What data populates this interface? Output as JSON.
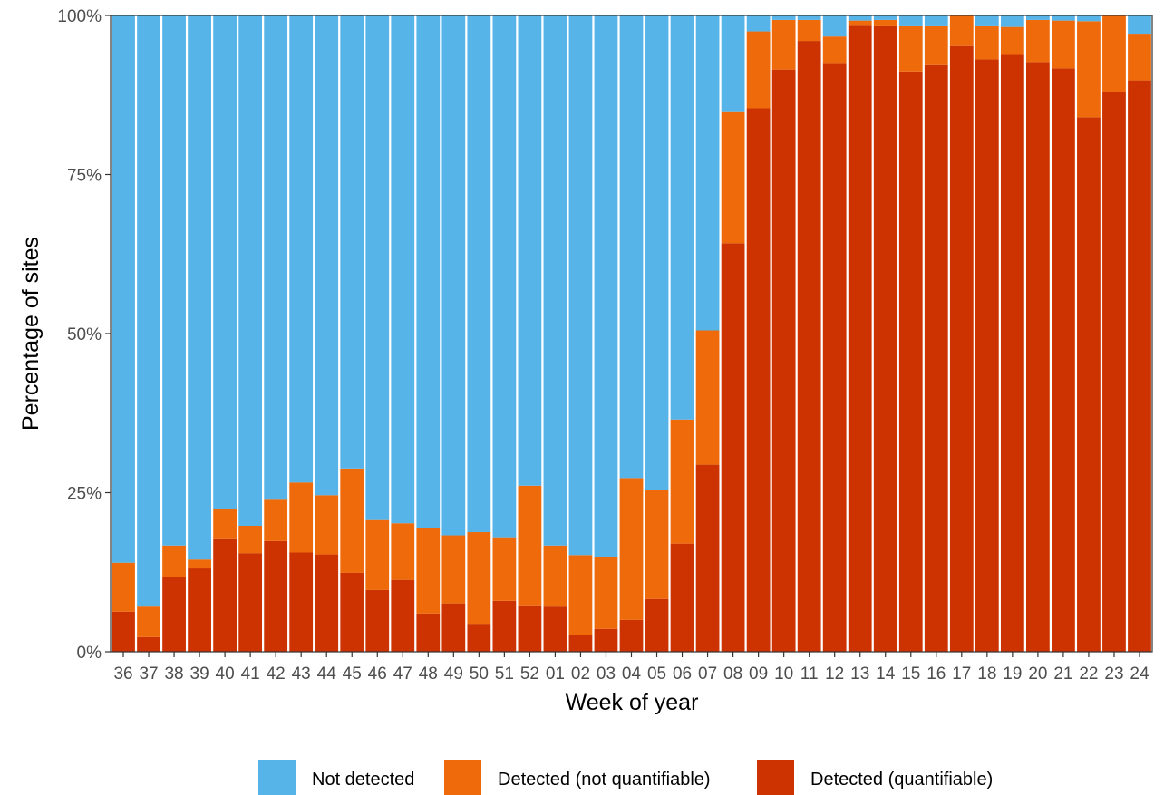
{
  "chart_data": {
    "type": "bar",
    "stacked": true,
    "percent": true,
    "xlabel": "Week of year",
    "ylabel": "Percentage of sites",
    "ylim": [
      0,
      100
    ],
    "yticks": [
      "0%",
      "25%",
      "50%",
      "75%",
      "100%"
    ],
    "grid": false,
    "legend_position": "bottom",
    "categories": [
      "36",
      "37",
      "38",
      "39",
      "40",
      "41",
      "42",
      "43",
      "44",
      "45",
      "46",
      "47",
      "48",
      "49",
      "50",
      "51",
      "52",
      "01",
      "02",
      "03",
      "04",
      "05",
      "06",
      "07",
      "08",
      "09",
      "10",
      "11",
      "12",
      "13",
      "14",
      "15",
      "16",
      "17",
      "18",
      "19",
      "20",
      "21",
      "22",
      "23",
      "24"
    ],
    "series": [
      {
        "name": "Detected (quantifiable)",
        "color": "#CC3300",
        "values": [
          6.3,
          2.3,
          11.7,
          13.1,
          17.7,
          15.5,
          17.4,
          15.6,
          15.3,
          12.4,
          9.7,
          11.3,
          6.0,
          7.6,
          4.4,
          8.0,
          7.3,
          7.1,
          2.7,
          3.6,
          5.0,
          8.3,
          17.0,
          29.4,
          64.2,
          85.4,
          91.5,
          96.0,
          92.4,
          98.4,
          98.3,
          91.2,
          92.2,
          95.2,
          93.1,
          93.8,
          92.7,
          91.7,
          84.0,
          88.0,
          89.8
        ]
      },
      {
        "name": "Detected (not quantifiable)",
        "color": "#EE6A0A",
        "values": [
          7.7,
          4.8,
          5.0,
          1.4,
          4.7,
          4.3,
          6.5,
          11.0,
          9.3,
          16.4,
          11.0,
          8.9,
          13.4,
          10.7,
          14.4,
          10.0,
          18.8,
          9.6,
          12.5,
          11.3,
          22.3,
          17.1,
          19.5,
          21.1,
          20.6,
          12.1,
          7.8,
          3.3,
          4.3,
          0.8,
          1.0,
          7.1,
          6.1,
          4.8,
          5.2,
          4.4,
          6.6,
          7.5,
          15.1,
          12.0,
          7.2
        ]
      },
      {
        "name": "Not detected",
        "color": "#56B4E9",
        "values": [
          86.0,
          92.9,
          83.3,
          85.5,
          77.6,
          80.2,
          76.1,
          73.4,
          75.4,
          71.2,
          79.3,
          79.8,
          80.6,
          81.7,
          81.2,
          82.0,
          73.9,
          83.3,
          84.8,
          85.1,
          72.7,
          74.6,
          63.5,
          49.5,
          15.2,
          2.5,
          0.7,
          0.7,
          3.3,
          0.8,
          0.7,
          1.7,
          1.7,
          0.0,
          1.7,
          1.8,
          0.7,
          0.8,
          0.9,
          0.0,
          3.0
        ]
      }
    ],
    "legend_order": [
      "Not detected",
      "Detected (not quantifiable)",
      "Detected (quantifiable)"
    ]
  }
}
